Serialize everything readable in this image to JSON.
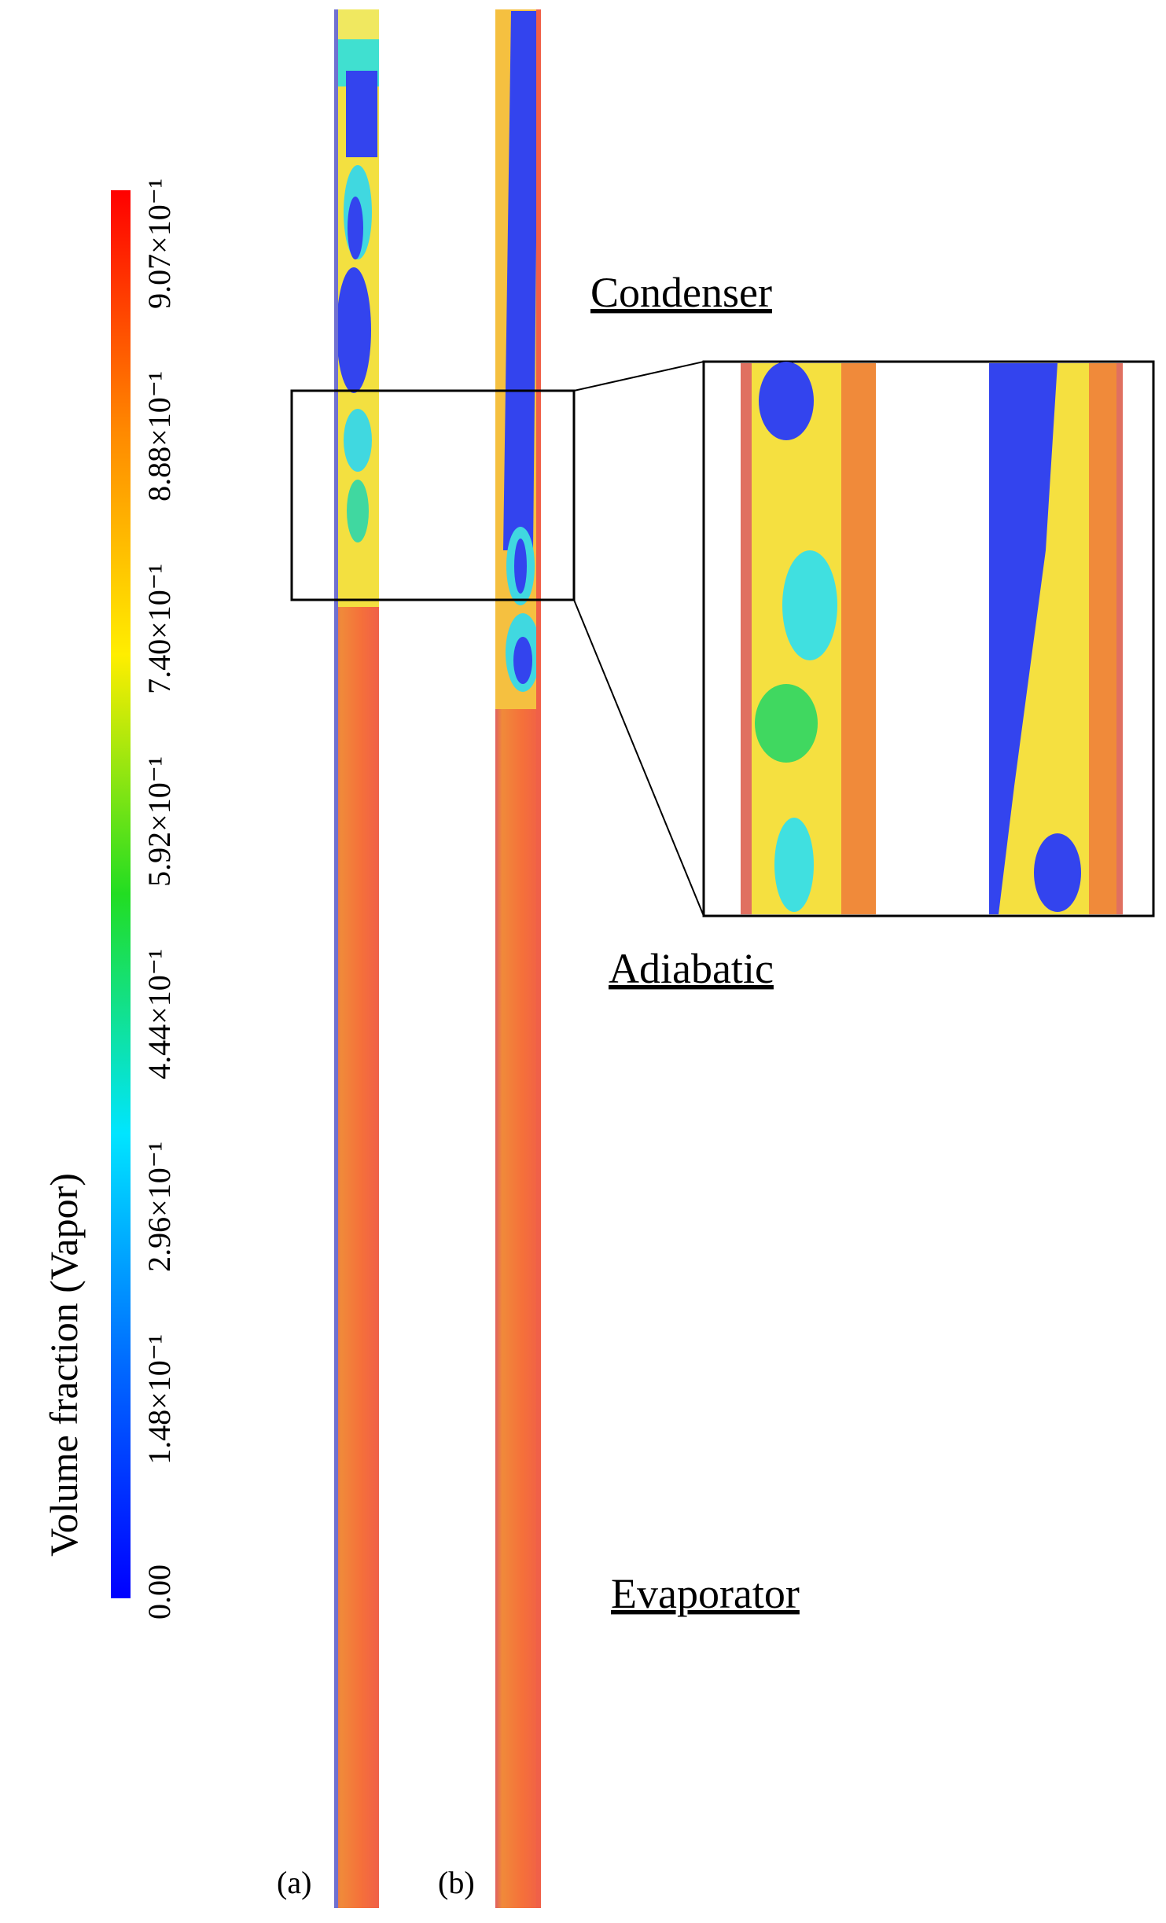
{
  "colorbar": {
    "title": "Volume fraction (Vapor)",
    "ticks": [
      "0.00",
      "1.48×10⁻¹",
      "2.96×10⁻¹",
      "4.44×10⁻¹",
      "5.92×10⁻¹",
      "7.40×10⁻¹",
      "8.88×10⁻¹",
      "9.07×10⁻¹"
    ]
  },
  "regions": [
    "Condenser",
    "Adiabatic",
    "Evaporator"
  ],
  "panels": [
    "(a)",
    "(b)"
  ]
}
